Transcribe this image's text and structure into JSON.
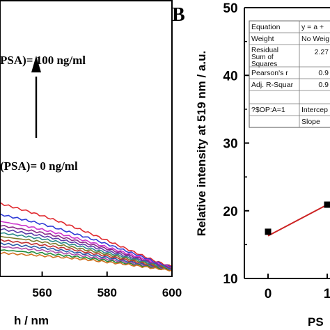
{
  "panel_b_letter": "B",
  "chart_data": [
    {
      "type": "line",
      "panel": "A",
      "xlabel_visible": "h / nm",
      "x_ticks": [
        "560",
        "580",
        "600"
      ],
      "xlim": [
        547,
        600
      ],
      "ylim": [
        0,
        1
      ],
      "annotations": {
        "top": "PSA)= 100 ng/ml",
        "bottom": "(PSA)= 0 ng/ml"
      },
      "x": [
        547,
        555,
        560,
        565,
        570,
        575,
        580,
        585,
        590,
        595,
        600
      ],
      "series": [
        {
          "color": "#e0282e",
          "values": [
            0.265,
            0.238,
            0.22,
            0.2,
            0.178,
            0.155,
            0.13,
            0.105,
            0.08,
            0.055,
            0.035
          ]
        },
        {
          "color": "#2e3ad6",
          "values": [
            0.225,
            0.204,
            0.19,
            0.173,
            0.155,
            0.137,
            0.117,
            0.096,
            0.075,
            0.052,
            0.033
          ]
        },
        {
          "color": "#cc33cc",
          "values": [
            0.2,
            0.183,
            0.17,
            0.156,
            0.14,
            0.124,
            0.106,
            0.088,
            0.069,
            0.049,
            0.031
          ]
        },
        {
          "color": "#8a2a8a",
          "values": [
            0.185,
            0.169,
            0.158,
            0.145,
            0.131,
            0.116,
            0.1,
            0.083,
            0.065,
            0.046,
            0.03
          ]
        },
        {
          "color": "#5a3aa8",
          "values": [
            0.172,
            0.157,
            0.147,
            0.135,
            0.122,
            0.108,
            0.093,
            0.077,
            0.061,
            0.044,
            0.029
          ]
        },
        {
          "color": "#2a8a8a",
          "values": [
            0.158,
            0.145,
            0.136,
            0.125,
            0.113,
            0.1,
            0.086,
            0.072,
            0.057,
            0.041,
            0.028
          ]
        },
        {
          "color": "#7a7a2a",
          "values": [
            0.145,
            0.133,
            0.125,
            0.115,
            0.104,
            0.093,
            0.08,
            0.067,
            0.053,
            0.039,
            0.027
          ]
        },
        {
          "color": "#c03030",
          "values": [
            0.132,
            0.121,
            0.114,
            0.105,
            0.096,
            0.085,
            0.074,
            0.062,
            0.049,
            0.036,
            0.026
          ]
        },
        {
          "color": "#2a5aa8",
          "values": [
            0.12,
            0.11,
            0.104,
            0.096,
            0.088,
            0.078,
            0.068,
            0.057,
            0.046,
            0.034,
            0.025
          ]
        },
        {
          "color": "#aa4aaa",
          "values": [
            0.108,
            0.1,
            0.094,
            0.087,
            0.08,
            0.071,
            0.062,
            0.053,
            0.043,
            0.032,
            0.024
          ]
        },
        {
          "color": "#1f8a3a",
          "values": [
            0.096,
            0.089,
            0.084,
            0.078,
            0.072,
            0.065,
            0.057,
            0.049,
            0.04,
            0.031,
            0.023
          ]
        },
        {
          "color": "#d07020",
          "values": [
            0.085,
            0.079,
            0.075,
            0.07,
            0.065,
            0.059,
            0.052,
            0.045,
            0.037,
            0.029,
            0.022
          ]
        }
      ]
    },
    {
      "type": "scatter",
      "panel": "B",
      "ylabel": "Relative intensity at 519 nm / a.u.",
      "xlabel_visible": "PS",
      "ylim": [
        10,
        50
      ],
      "y_ticks": [
        10,
        20,
        30,
        40,
        50
      ],
      "x_ticks": [
        "0",
        "1"
      ],
      "xlim": [
        -0.6,
        1.2
      ],
      "points": [
        {
          "x": 0,
          "y": 16.9
        },
        {
          "x": 1,
          "y": 20.9
        }
      ],
      "fit_line": {
        "x": [
          0,
          1
        ],
        "y": [
          16.3,
          20.9
        ],
        "color": "#cc2222"
      },
      "fit_table": [
        [
          "Equation",
          "y = a +"
        ],
        [
          "Weight",
          "No Weig"
        ],
        [
          "Residual Sum of Squares",
          "2.27"
        ],
        [
          "Pearson's r",
          "0.9"
        ],
        [
          "Adj. R-Squar",
          "0.9"
        ],
        [
          "",
          ""
        ],
        [
          "?$OP:A=1",
          "Intercep"
        ],
        [
          "",
          "Slope"
        ]
      ]
    }
  ]
}
